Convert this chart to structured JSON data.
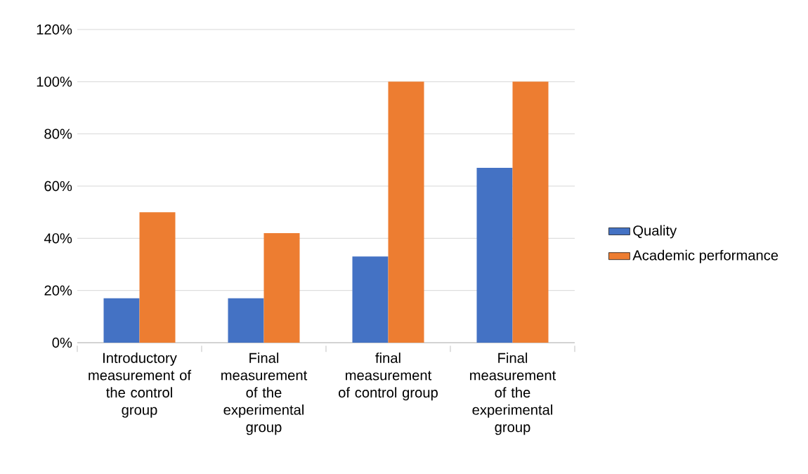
{
  "chart_data": {
    "type": "bar",
    "categories": [
      "Introductory measurement of the control group",
      "Final measurement of the experimental group",
      "final measurement of control group",
      "Final measurement of the experimental group"
    ],
    "series": [
      {
        "name": "Quality",
        "color": "#4472c4",
        "values": [
          17,
          17,
          33,
          67
        ]
      },
      {
        "name": "Academic performance",
        "color": "#ed7d31",
        "values": [
          50,
          42,
          100,
          100
        ]
      }
    ],
    "ylim": [
      0,
      120
    ],
    "yticks": [
      {
        "value": 0,
        "label": "0%"
      },
      {
        "value": 20,
        "label": "20%"
      },
      {
        "value": 40,
        "label": "40%"
      },
      {
        "value": 60,
        "label": "60%"
      },
      {
        "value": 80,
        "label": "80%"
      },
      {
        "value": 100,
        "label": "100%"
      },
      {
        "value": 120,
        "label": "120%"
      }
    ],
    "grid": "y",
    "legend": "right"
  }
}
